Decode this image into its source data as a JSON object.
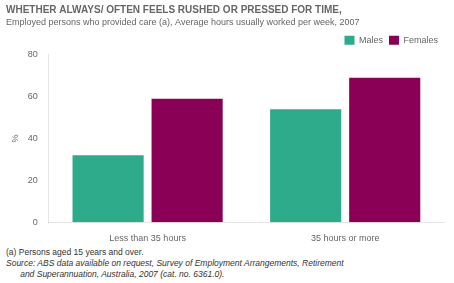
{
  "chart_data": {
    "type": "bar",
    "title": "WHETHER ALWAYS/ OFTEN FEELS RUSHED OR PRESSED FOR TIME,",
    "subtitle": "Employed persons who provided care (a), Average hours usually worked per week, 2007",
    "categories": [
      "Less than 35 hours",
      "35 hours or more"
    ],
    "series": [
      {
        "name": "Males",
        "color": "#2dab8a",
        "values": [
          32,
          54
        ]
      },
      {
        "name": "Females",
        "color": "#8b0057",
        "values": [
          59,
          69
        ]
      }
    ],
    "ylabel": "%",
    "ylim": [
      0,
      80
    ],
    "yticks": [
      0,
      20,
      40,
      60,
      80
    ],
    "grid": false,
    "legend": "upper right",
    "annotations": [
      "(a) Persons aged 15 years and over.",
      "Source: ABS data available on request, Survey of Employment Arrangements, Retirement",
      "      and Superannuation, Australia, 2007 (cat. no. 6361.0)."
    ]
  }
}
